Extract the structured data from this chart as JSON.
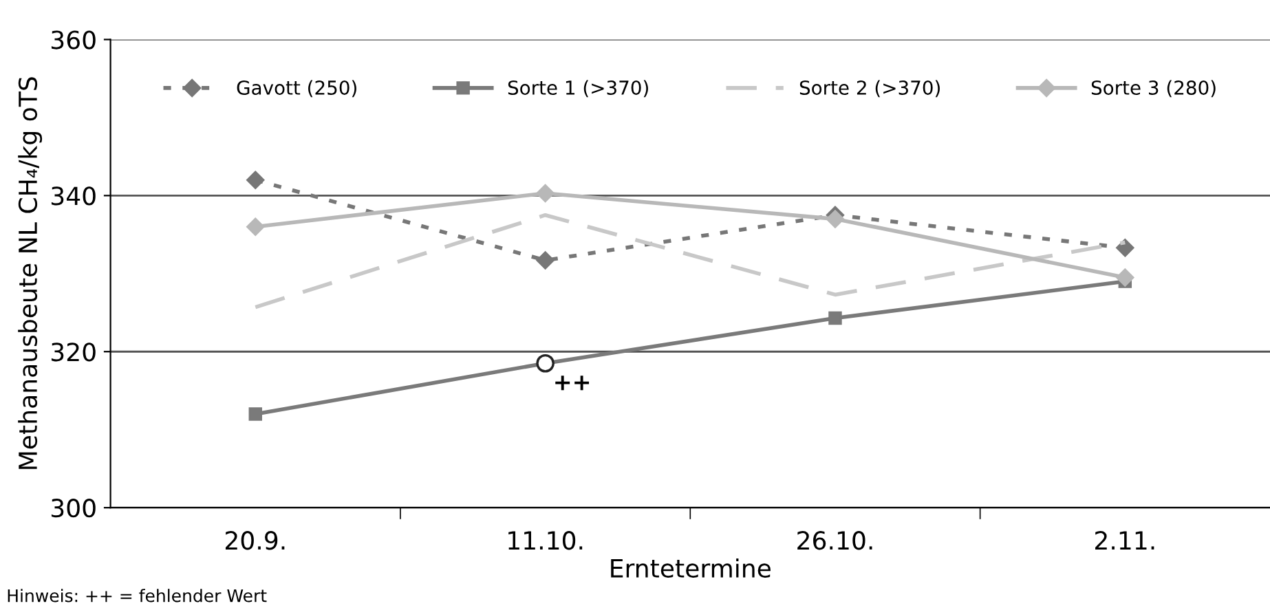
{
  "chart_data": {
    "type": "line",
    "xlabel": "Erntetermine",
    "ylabel": "Methanausbeute NL CH₄/kg oTS",
    "categories": [
      "20.9.",
      "11.10.",
      "26.10.",
      "2.11."
    ],
    "series": [
      {
        "name": "Gavott (250)",
        "color": "#777777",
        "values": [
          342,
          331.7,
          337.5,
          333.3
        ],
        "marker": "diamond",
        "line_style": "dotted"
      },
      {
        "name": "Sorte 1 (>370)",
        "color": "#7a7a7a",
        "values": [
          312,
          318.5,
          324.3,
          329
        ],
        "marker": "square",
        "line_style": "solid"
      },
      {
        "name": "Sorte 2 (>370)",
        "color": "#c8c8c8",
        "values": [
          325.7,
          337.5,
          327.3,
          334
        ],
        "marker": "none",
        "line_style": "dashed"
      },
      {
        "name": "Sorte 3 (280)",
        "color": "#b8b8b8",
        "values": [
          336,
          340.3,
          337,
          329.5
        ],
        "marker": "diamond",
        "line_style": "solid"
      },
      {
        "type": "scatter",
        "color": "#ffffff",
        "x": [
          "11.10."
        ],
        "values": [
          318.5
        ],
        "marker": "circle"
      }
    ],
    "ylim": [
      300,
      360
    ],
    "yticks": [
      300,
      320,
      340,
      360
    ],
    "grid": "y",
    "legend": "top",
    "annotations": [
      {
        "text": "++",
        "x": "11.10.",
        "y": 318.5
      },
      "Hinweis: ++ = fehlender Wert"
    ]
  }
}
